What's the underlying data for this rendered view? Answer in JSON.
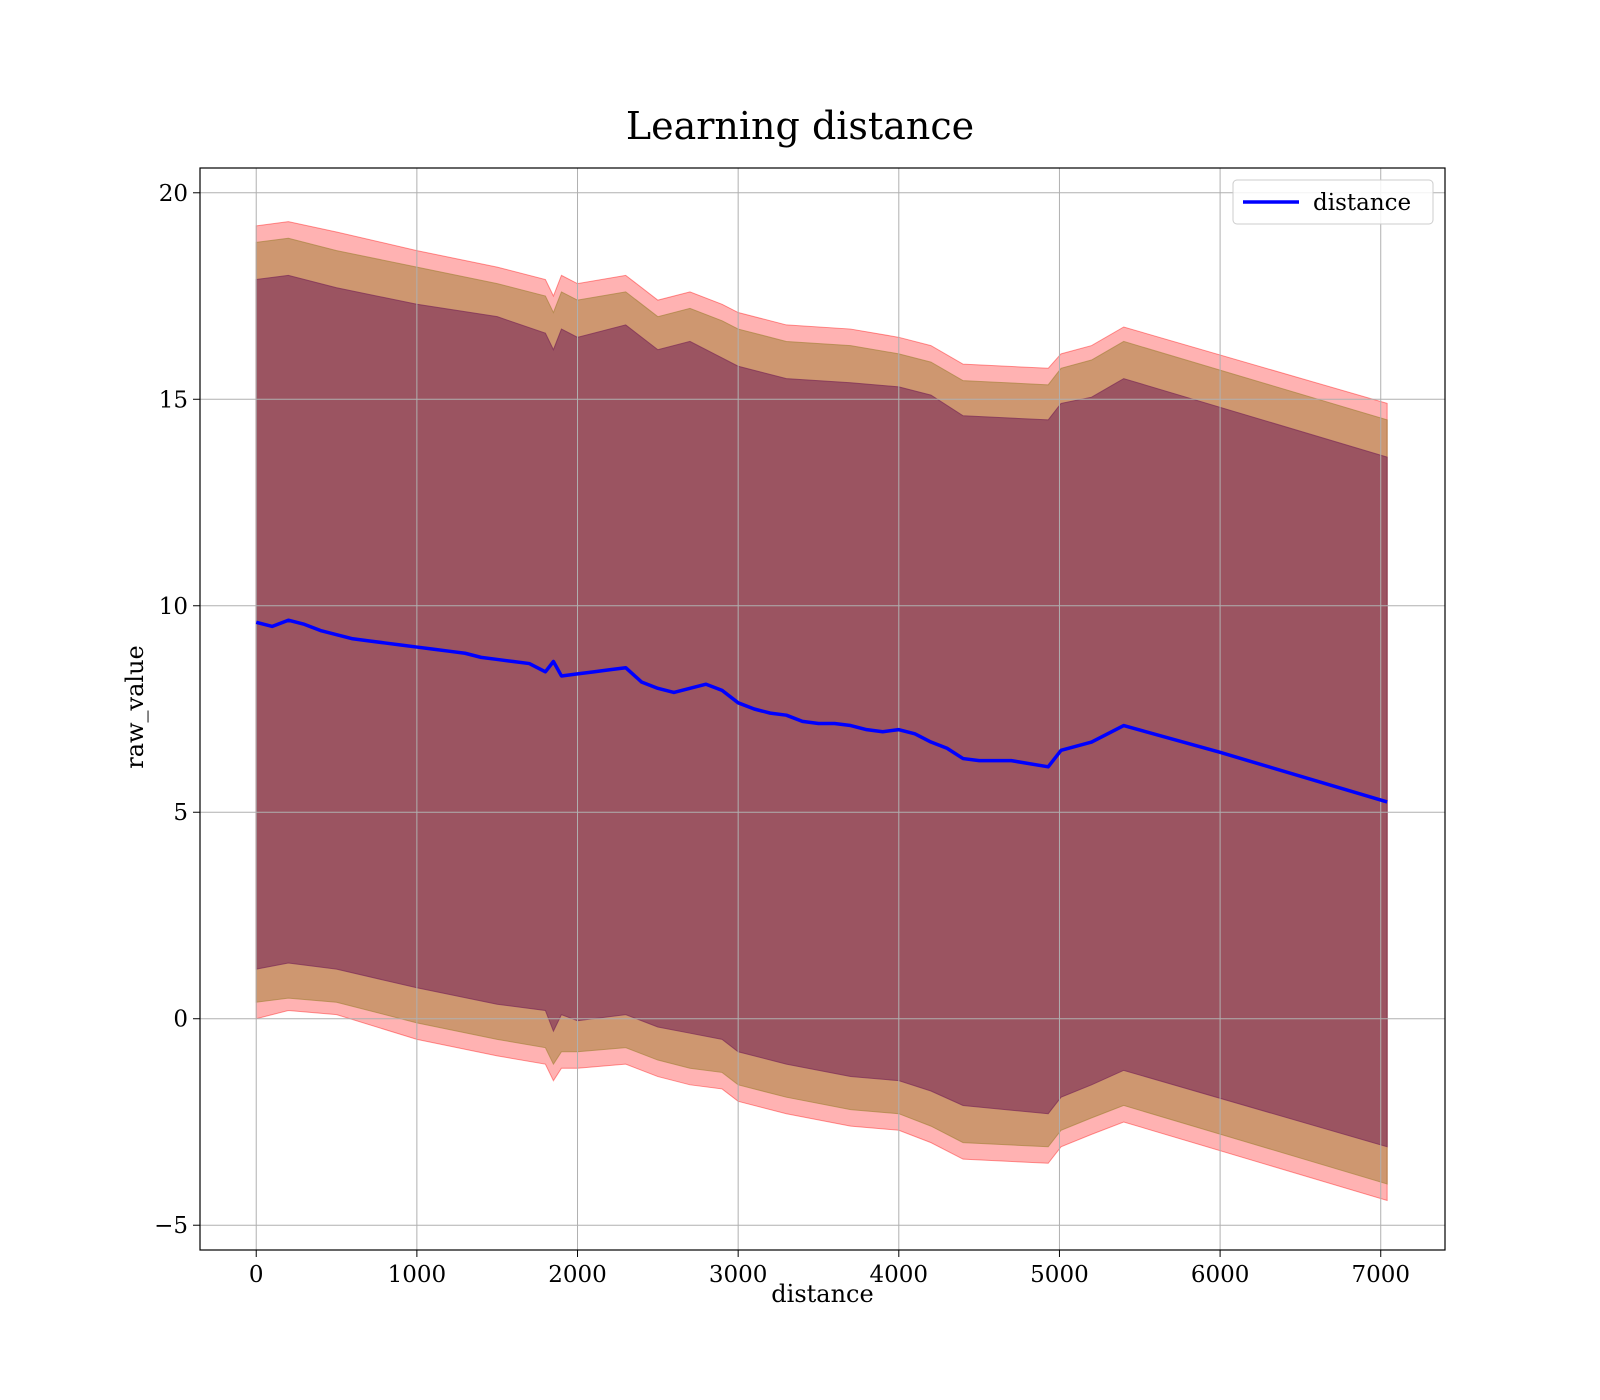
{
  "chart_data": {
    "type": "line",
    "title": "Learning distance",
    "xlabel": "distance",
    "ylabel": "raw_value",
    "xlim": [
      -350,
      7400
    ],
    "ylim": [
      -5.6,
      20.6
    ],
    "x_ticks": [
      0,
      1000,
      2000,
      3000,
      4000,
      5000,
      6000,
      7000
    ],
    "y_ticks": [
      -5,
      0,
      5,
      10,
      15,
      20
    ],
    "y_tick_labels": [
      "−5",
      "0",
      "5",
      "10",
      "15",
      "20"
    ],
    "grid": true,
    "legend_placement": "top-right",
    "series": [
      {
        "name": "distance",
        "color": "#0000ff",
        "x": [
          0,
          100,
          200,
          300,
          400,
          500,
          600,
          700,
          800,
          900,
          1000,
          1100,
          1200,
          1300,
          1400,
          1500,
          1600,
          1700,
          1800,
          1850,
          1900,
          2000,
          2100,
          2200,
          2300,
          2400,
          2500,
          2600,
          2700,
          2800,
          2900,
          3000,
          3100,
          3200,
          3300,
          3400,
          3500,
          3600,
          3700,
          3800,
          3900,
          4000,
          4100,
          4200,
          4300,
          4400,
          4500,
          4700,
          4930,
          5010,
          5200,
          5400,
          6000,
          7040
        ],
        "y": [
          9.6,
          9.5,
          9.65,
          9.55,
          9.4,
          9.3,
          9.2,
          9.15,
          9.1,
          9.05,
          9.0,
          8.95,
          8.9,
          8.85,
          8.75,
          8.7,
          8.65,
          8.6,
          8.4,
          8.65,
          8.3,
          8.35,
          8.4,
          8.45,
          8.5,
          8.15,
          8.0,
          7.9,
          8.0,
          8.1,
          7.95,
          7.65,
          7.5,
          7.4,
          7.35,
          7.2,
          7.15,
          7.15,
          7.1,
          7.0,
          6.95,
          7.0,
          6.9,
          6.7,
          6.55,
          6.3,
          6.25,
          6.25,
          6.1,
          6.5,
          6.7,
          7.1,
          6.45,
          5.25
        ]
      }
    ],
    "bands": [
      {
        "color": "#ff0000",
        "opacity": 0.3,
        "x": [
          0,
          200,
          500,
          1000,
          1500,
          1800,
          1850,
          1900,
          2000,
          2300,
          2500,
          2700,
          2900,
          3000,
          3300,
          3700,
          4000,
          4200,
          4400,
          4930,
          5010,
          5200,
          5400,
          7040
        ],
        "upper": [
          19.2,
          19.3,
          19.05,
          18.6,
          18.2,
          17.9,
          17.5,
          18.0,
          17.8,
          18.0,
          17.4,
          17.6,
          17.3,
          17.1,
          16.8,
          16.7,
          16.5,
          16.3,
          15.85,
          15.75,
          16.1,
          16.3,
          16.75,
          14.9
        ],
        "lower": [
          0.0,
          0.2,
          0.1,
          -0.5,
          -0.9,
          -1.1,
          -1.5,
          -1.2,
          -1.2,
          -1.1,
          -1.4,
          -1.6,
          -1.7,
          -2.0,
          -2.3,
          -2.6,
          -2.7,
          -3.0,
          -3.4,
          -3.5,
          -3.1,
          -2.8,
          -2.5,
          -4.4
        ]
      },
      {
        "color": "#a5823b",
        "opacity": 0.55,
        "x": [
          0,
          200,
          500,
          1000,
          1500,
          1800,
          1850,
          1900,
          2000,
          2300,
          2500,
          2700,
          2900,
          3000,
          3300,
          3700,
          4000,
          4200,
          4400,
          4930,
          5010,
          5200,
          5400,
          7040
        ],
        "upper": [
          18.8,
          18.9,
          18.6,
          18.2,
          17.8,
          17.5,
          17.1,
          17.6,
          17.4,
          17.6,
          17.0,
          17.2,
          16.9,
          16.7,
          16.4,
          16.3,
          16.1,
          15.9,
          15.45,
          15.35,
          15.75,
          15.95,
          16.4,
          14.5
        ],
        "lower": [
          0.4,
          0.5,
          0.4,
          -0.1,
          -0.5,
          -0.7,
          -1.1,
          -0.8,
          -0.8,
          -0.7,
          -1.0,
          -1.2,
          -1.3,
          -1.6,
          -1.9,
          -2.2,
          -2.3,
          -2.6,
          -3.0,
          -3.1,
          -2.7,
          -2.4,
          -2.1,
          -4.0
        ]
      },
      {
        "color": "#7d2c58",
        "opacity": 0.62,
        "x": [
          0,
          200,
          500,
          1000,
          1500,
          1800,
          1850,
          1900,
          2000,
          2300,
          2500,
          2700,
          2900,
          3000,
          3300,
          3700,
          4000,
          4200,
          4400,
          4930,
          5010,
          5200,
          5400,
          7040
        ],
        "upper": [
          17.9,
          18.0,
          17.7,
          17.3,
          17.0,
          16.6,
          16.2,
          16.7,
          16.5,
          16.8,
          16.2,
          16.4,
          16.0,
          15.8,
          15.5,
          15.4,
          15.3,
          15.1,
          14.6,
          14.5,
          14.9,
          15.05,
          15.5,
          13.6
        ],
        "lower": [
          1.2,
          1.35,
          1.2,
          0.75,
          0.35,
          0.2,
          -0.3,
          0.1,
          -0.05,
          0.1,
          -0.2,
          -0.35,
          -0.5,
          -0.8,
          -1.1,
          -1.4,
          -1.5,
          -1.75,
          -2.1,
          -2.3,
          -1.9,
          -1.6,
          -1.25,
          -3.1
        ]
      }
    ]
  }
}
